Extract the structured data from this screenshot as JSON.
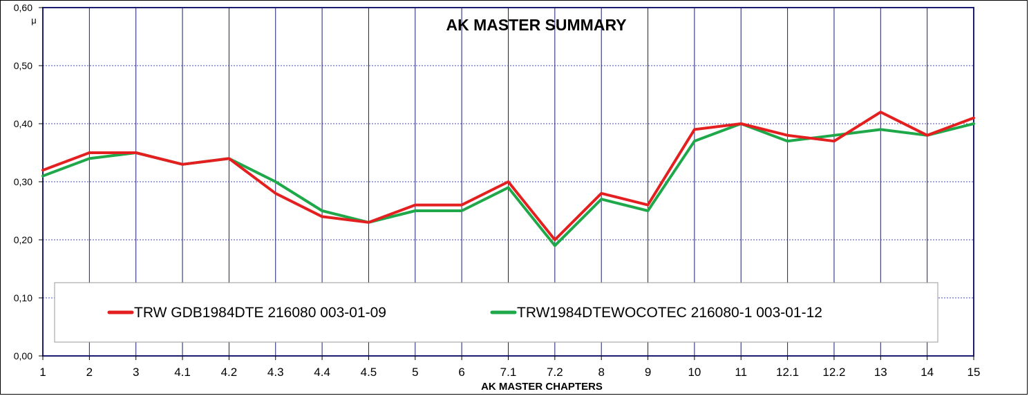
{
  "chart_data": {
    "type": "line",
    "title": "AK MASTER SUMMARY",
    "xlabel": "AK MASTER CHAPTERS",
    "ylabel": "μ",
    "ylim": [
      0,
      0.6
    ],
    "y_ticks": [
      "0,00",
      "0,10",
      "0,20",
      "0,30",
      "0,40",
      "0,50",
      "0,60"
    ],
    "categories": [
      "1",
      "2",
      "3",
      "4.1",
      "4.2",
      "4.3",
      "4.4",
      "4.5",
      "5",
      "6",
      "7.1",
      "7.2",
      "8",
      "9",
      "10",
      "11",
      "12.1",
      "12.2",
      "13",
      "14",
      "15"
    ],
    "grid": true,
    "legend_position": "bottom-inside",
    "series": [
      {
        "name": "TRW GDB1984DTE 216080 003-01-09",
        "color": "#e41f1f",
        "values": [
          0.32,
          0.35,
          0.35,
          0.33,
          0.34,
          0.28,
          0.24,
          0.23,
          0.26,
          0.26,
          0.3,
          0.2,
          0.28,
          0.26,
          0.39,
          0.4,
          0.38,
          0.37,
          0.42,
          0.38,
          0.41
        ]
      },
      {
        "name": "TRW1984DTEWOCOTEC 216080-1 003-01-12",
        "color": "#1fa84a",
        "values": [
          0.31,
          0.34,
          0.35,
          0.33,
          0.34,
          0.3,
          0.25,
          0.23,
          0.25,
          0.25,
          0.29,
          0.19,
          0.27,
          0.25,
          0.37,
          0.4,
          0.37,
          0.38,
          0.39,
          0.38,
          0.4
        ]
      }
    ]
  }
}
